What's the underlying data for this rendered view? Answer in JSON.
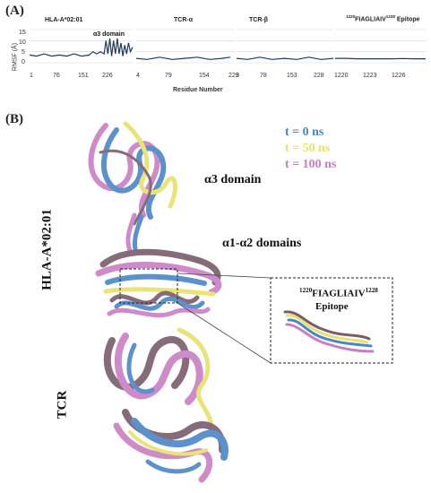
{
  "panel_a": {
    "label": "(A)",
    "ylabel": "RMSF (Å)",
    "xlabel": "Residue Number",
    "annotation": "α3 domain",
    "y_ticks": [
      "15",
      "10",
      "5",
      "0"
    ],
    "colors": {
      "line": "#1f3b5c",
      "grid": "#d8d8d8"
    }
  },
  "chart_data": [
    {
      "type": "line",
      "title": "HLA-A*02:01",
      "x_tick_labels": [
        "1",
        "76",
        "151",
        "226"
      ],
      "ylim": [
        0,
        15
      ],
      "x": [
        1,
        20,
        40,
        60,
        80,
        100,
        120,
        140,
        160,
        170,
        180,
        190,
        200,
        205,
        210,
        215,
        220,
        225,
        230,
        235,
        240,
        245,
        250,
        255,
        260,
        265,
        270,
        276
      ],
      "y": [
        3.5,
        3,
        4,
        3,
        3.5,
        3,
        4,
        3,
        3.5,
        5,
        4,
        5,
        4,
        10,
        4,
        11,
        3,
        10,
        4,
        11,
        4,
        9,
        3,
        8,
        4,
        9,
        5,
        7
      ]
    },
    {
      "type": "line",
      "title": "TCR-α",
      "x_tick_labels": [
        "4",
        "79",
        "154",
        "229"
      ],
      "ylim": [
        0,
        15
      ],
      "x": [
        4,
        30,
        60,
        90,
        120,
        150,
        180,
        210,
        229
      ],
      "y": [
        2,
        1.5,
        2.5,
        1.5,
        2,
        2.5,
        1.5,
        2,
        2.5
      ]
    },
    {
      "type": "line",
      "title": "TCR-β",
      "x_tick_labels": [
        "3",
        "78",
        "153",
        "228"
      ],
      "ylim": [
        0,
        15
      ],
      "x": [
        3,
        30,
        60,
        90,
        120,
        150,
        180,
        210,
        240
      ],
      "y": [
        2,
        1.5,
        2.5,
        1.5,
        2,
        1.5,
        2.5,
        1.5,
        2
      ]
    },
    {
      "type": "line",
      "title_number_1": "1220",
      "title_text_1": "FIAGLIAIV",
      "title_number_2": "1228",
      "title_text_2": " Epitope",
      "x_tick_labels": [
        "1220",
        "1223",
        "1226"
      ],
      "ylim": [
        0,
        15
      ],
      "x": [
        1220,
        1221,
        1222,
        1223,
        1224,
        1225,
        1226,
        1227,
        1228
      ],
      "y": [
        2,
        2,
        1.8,
        1.8,
        1.8,
        1.8,
        1.9,
        1.8,
        1.8
      ]
    }
  ],
  "panel_b": {
    "label": "(B)",
    "legend": [
      {
        "text": "t = 0 ns",
        "color": "#4a86c8"
      },
      {
        "text": "t = 50 ns",
        "color": "#e6e26a"
      },
      {
        "text": "t = 100 ns",
        "color": "#c97ec4"
      }
    ],
    "labels": {
      "alpha3": "α3 domain",
      "alpha12": "α1-α2 domains",
      "hla": "HLA-A*02:01",
      "tcr": "TCR"
    },
    "inset": {
      "num1": "1220",
      "text1": "FIAGLIAIV",
      "num2": "1228",
      "text2": "Epitope"
    },
    "ribbon_colors": [
      "#c97ec4",
      "#4a86c8",
      "#e6e26a",
      "#7a5d6b"
    ]
  }
}
